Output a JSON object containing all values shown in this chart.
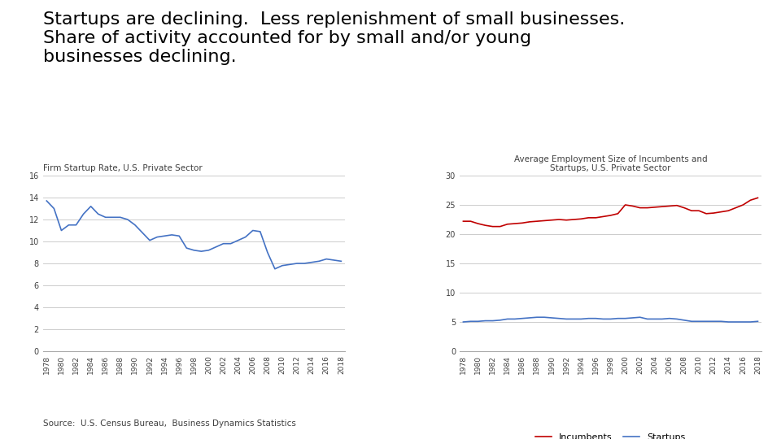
{
  "title": "Startups are declining.  Less replenishment of small businesses.\nShare of activity accounted for by small and/or young\nbusinesses declining.",
  "title_fontsize": 16,
  "source_text": "Source:  U.S. Census Bureau,  Business Dynamics Statistics",
  "chart1_title": "Firm Startup Rate, U.S. Private Sector",
  "chart1_years": [
    1978,
    1979,
    1980,
    1981,
    1982,
    1983,
    1984,
    1985,
    1986,
    1987,
    1988,
    1989,
    1990,
    1991,
    1992,
    1993,
    1994,
    1995,
    1996,
    1997,
    1998,
    1999,
    2000,
    2001,
    2002,
    2003,
    2004,
    2005,
    2006,
    2007,
    2008,
    2009,
    2010,
    2011,
    2012,
    2013,
    2014,
    2015,
    2016,
    2017,
    2018
  ],
  "chart1_values": [
    13.7,
    13.0,
    11.0,
    11.5,
    11.5,
    12.5,
    13.2,
    12.5,
    12.2,
    12.2,
    12.2,
    12.0,
    11.5,
    10.8,
    10.1,
    10.4,
    10.5,
    10.6,
    10.5,
    9.4,
    9.2,
    9.1,
    9.2,
    9.5,
    9.8,
    9.8,
    10.1,
    10.4,
    11.0,
    10.9,
    9.0,
    7.5,
    7.8,
    7.9,
    8.0,
    8.0,
    8.1,
    8.2,
    8.4,
    8.3,
    8.2
  ],
  "chart1_ylim": [
    0,
    16
  ],
  "chart1_yticks": [
    0,
    2,
    4,
    6,
    8,
    10,
    12,
    14,
    16
  ],
  "chart1_color": "#4472c4",
  "chart2_title": "Average Employment Size of Incumbents and\nStartups, U.S. Private Sector",
  "chart2_years": [
    1978,
    1979,
    1980,
    1981,
    1982,
    1983,
    1984,
    1985,
    1986,
    1987,
    1988,
    1989,
    1990,
    1991,
    1992,
    1993,
    1994,
    1995,
    1996,
    1997,
    1998,
    1999,
    2000,
    2001,
    2002,
    2003,
    2004,
    2005,
    2006,
    2007,
    2008,
    2009,
    2010,
    2011,
    2012,
    2013,
    2014,
    2015,
    2016,
    2017,
    2018
  ],
  "incumbents": [
    22.2,
    22.2,
    21.8,
    21.5,
    21.3,
    21.3,
    21.7,
    21.8,
    21.9,
    22.1,
    22.2,
    22.3,
    22.4,
    22.5,
    22.4,
    22.5,
    22.6,
    22.8,
    22.8,
    23.0,
    23.2,
    23.5,
    25.0,
    24.8,
    24.5,
    24.5,
    24.6,
    24.7,
    24.8,
    24.9,
    24.5,
    24.0,
    24.0,
    23.5,
    23.6,
    23.8,
    24.0,
    24.5,
    25.0,
    25.8,
    26.2
  ],
  "startups": [
    5.0,
    5.1,
    5.1,
    5.2,
    5.2,
    5.3,
    5.5,
    5.5,
    5.6,
    5.7,
    5.8,
    5.8,
    5.7,
    5.6,
    5.5,
    5.5,
    5.5,
    5.6,
    5.6,
    5.5,
    5.5,
    5.6,
    5.6,
    5.7,
    5.8,
    5.5,
    5.5,
    5.5,
    5.6,
    5.5,
    5.3,
    5.1,
    5.1,
    5.1,
    5.1,
    5.1,
    5.0,
    5.0,
    5.0,
    5.0,
    5.1
  ],
  "chart2_ylim": [
    0,
    30
  ],
  "chart2_yticks": [
    0,
    5,
    10,
    15,
    20,
    25,
    30
  ],
  "incumbents_color": "#c00000",
  "startups_color": "#4472c4",
  "legend_incumbents": "Incumbents",
  "legend_startups": "Startups"
}
